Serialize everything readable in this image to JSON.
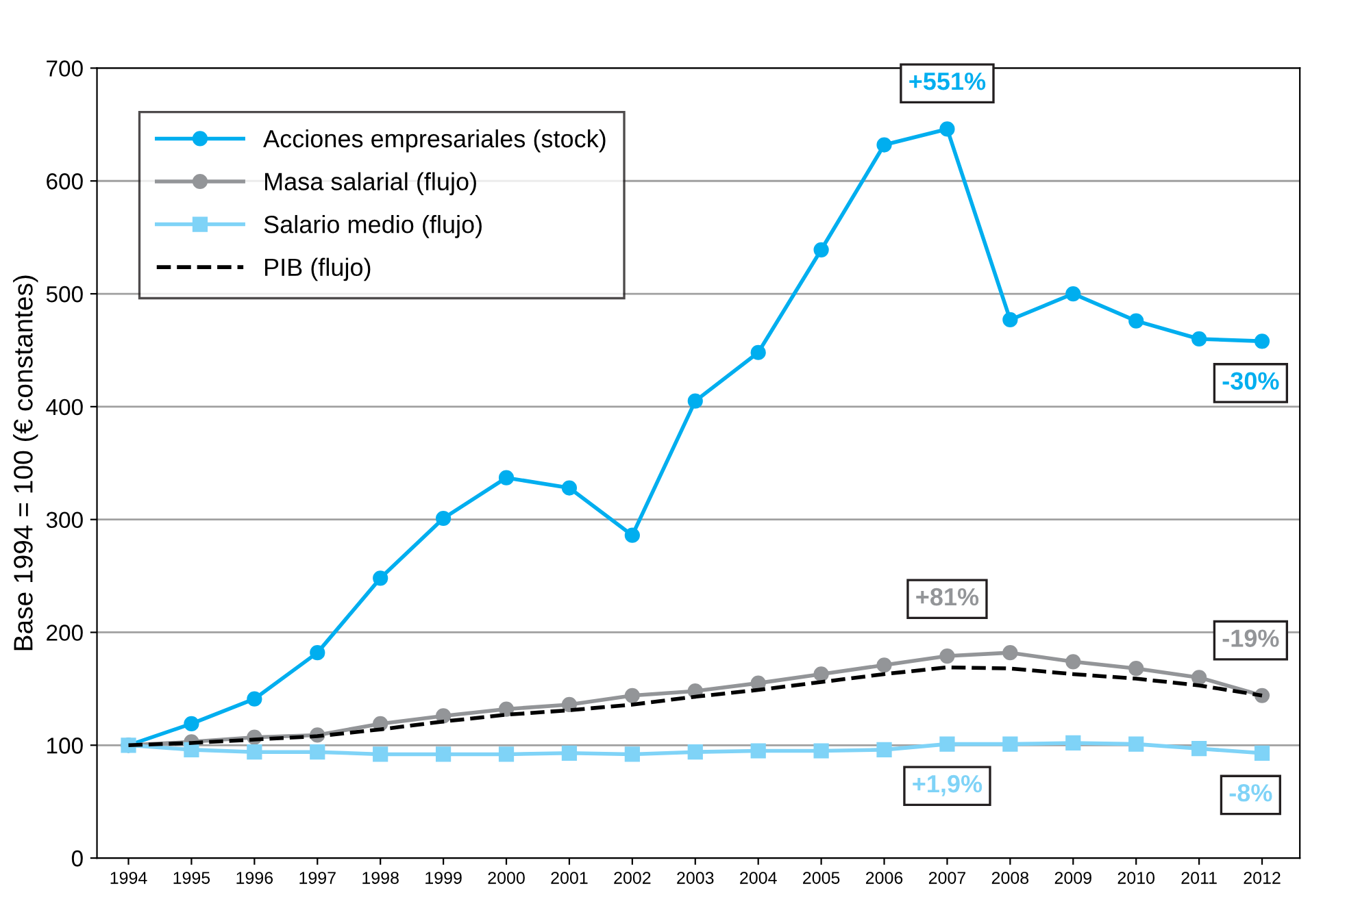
{
  "chart_data": {
    "type": "line",
    "ylabel": "Base 1994 = 100 (€ constantes)",
    "categories": [
      "1994",
      "1995",
      "1996",
      "1997",
      "1998",
      "1999",
      "2000",
      "2001",
      "2002",
      "2003",
      "2004",
      "2005",
      "2006",
      "2007",
      "2008",
      "2009",
      "2010",
      "2011",
      "2012"
    ],
    "series": [
      {
        "name": "Acciones empresariales (stock)",
        "color": "#00aeef",
        "marker": "circle",
        "line_style": "solid",
        "values": [
          100,
          119,
          141,
          182,
          248,
          301,
          337,
          328,
          286,
          405,
          448,
          539,
          632,
          646,
          477,
          500,
          476,
          460,
          458
        ]
      },
      {
        "name": "Masa salarial (flujo)",
        "color": "#939598",
        "marker": "circle",
        "line_style": "solid",
        "values": [
          100,
          103,
          107,
          109,
          119,
          126,
          132,
          136,
          144,
          148,
          155,
          163,
          171,
          179,
          182,
          174,
          168,
          160,
          144
        ]
      },
      {
        "name": "Salario medio (flujo)",
        "color": "#7fd3f7",
        "marker": "square",
        "line_style": "solid",
        "values": [
          100,
          96,
          94,
          94,
          92,
          92,
          92,
          93,
          92,
          94,
          95,
          95,
          96,
          101,
          101,
          102,
          101,
          97,
          93
        ]
      },
      {
        "name": "PIB (flujo)",
        "color": "#000000",
        "marker": "none",
        "line_style": "dashed",
        "values": [
          100,
          102,
          105,
          108,
          114,
          121,
          127,
          131,
          136,
          143,
          149,
          156,
          163,
          169,
          168,
          163,
          159,
          153,
          144
        ]
      }
    ],
    "annotations": [
      {
        "text": "+551%",
        "x": "2007",
        "y": 646
      },
      {
        "text": "-30%",
        "x": "2012",
        "y": 458
      },
      {
        "text": "+81%",
        "x": "2007",
        "y": 179
      },
      {
        "text": "-19%",
        "x": "2012",
        "y": 144
      },
      {
        "text": "+1,9%",
        "x": "2007",
        "y": 101
      },
      {
        "text": "-8%",
        "x": "2012",
        "y": 93
      }
    ],
    "ylim": [
      0,
      700
    ],
    "yticks": [
      0,
      100,
      200,
      300,
      400,
      500,
      600,
      700
    ],
    "grid": "y",
    "legend": "top left"
  }
}
